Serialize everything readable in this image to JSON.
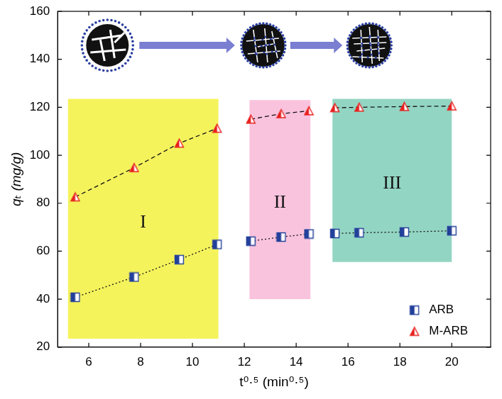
{
  "chart_data": {
    "type": "scatter",
    "x_label": "t⁰·⁵ (min⁰·⁵)",
    "y_label": "qₜ (mg/g)",
    "x": [
      5.48,
      7.75,
      9.49,
      10.95,
      12.25,
      13.42,
      14.49,
      15.49,
      16.43,
      18.17,
      20.0
    ],
    "series": [
      {
        "name": "ARB",
        "color": "#23409a",
        "marker": "square",
        "line_style": "dotted",
        "values": [
          40.8,
          49.2,
          56.5,
          62.8,
          64.2,
          65.9,
          67.2,
          67.4,
          67.7,
          68.0,
          68.5
        ]
      },
      {
        "name": "M-ARB",
        "color": "#e8201e",
        "marker": "triangle",
        "line_style": "dashed",
        "values": [
          82.6,
          94.8,
          105.0,
          111.2,
          115.0,
          117.3,
          118.5,
          119.8,
          120.0,
          120.3,
          120.5
        ]
      }
    ],
    "xlim": [
      4.8,
      21.5
    ],
    "xticks": [
      6,
      8,
      10,
      12,
      14,
      16,
      18,
      20
    ],
    "ylim": [
      20,
      160
    ],
    "yticks": [
      20,
      40,
      60,
      80,
      100,
      120,
      140,
      160
    ],
    "grid": false,
    "legend": "bottom right",
    "annotations": [
      {
        "text": "I",
        "x": [
          5.2,
          11.0
        ],
        "y": [
          23.5,
          123.5
        ],
        "color": "#f5f35c"
      },
      {
        "text": "II",
        "x": [
          12.2,
          14.55
        ],
        "y": [
          40,
          123
        ],
        "color": "#f9c3dd"
      },
      {
        "text": "III",
        "x": [
          15.4,
          20.0
        ],
        "y": [
          55.5,
          123.5
        ],
        "color": "#93d5c3"
      }
    ]
  }
}
